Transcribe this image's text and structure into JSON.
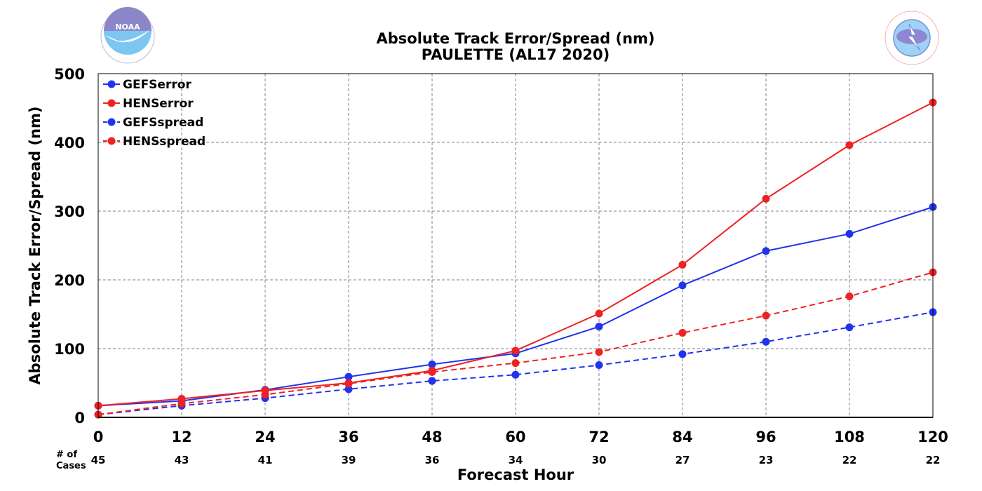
{
  "logos": {
    "left": {
      "icon": "noaa-logo",
      "text": "NOAA"
    },
    "right": {
      "icon": "nws-logo",
      "text": "NATIONAL WEATHER SERVICE"
    }
  },
  "chart_data": {
    "type": "line",
    "title": "Absolute Track Error/Spread (nm)",
    "subtitle": "PAULETTE (AL17 2020)",
    "xlabel": "Forecast Hour",
    "ylabel": "Absolute Track Error/Spread (nm)",
    "x": [
      0,
      12,
      24,
      36,
      48,
      60,
      72,
      84,
      96,
      108,
      120
    ],
    "xlim": [
      0,
      120
    ],
    "ylim": [
      0,
      500
    ],
    "yticks": [
      0,
      100,
      200,
      300,
      400,
      500
    ],
    "grid": true,
    "legend_position": "top-left",
    "cases_label_line1": "# of",
    "cases_label_line2": "Cases",
    "cases": [
      45,
      43,
      41,
      39,
      36,
      34,
      30,
      27,
      23,
      22,
      22
    ],
    "series": [
      {
        "name": "GEFSerror",
        "color": "#2233ee",
        "dash": "solid",
        "values": [
          17,
          24,
          40,
          59,
          77,
          93,
          132,
          192,
          242,
          267,
          306
        ]
      },
      {
        "name": "HENSerror",
        "color": "#ee2222",
        "dash": "solid",
        "values": [
          17,
          27,
          39,
          50,
          68,
          97,
          151,
          222,
          318,
          396,
          458
        ]
      },
      {
        "name": "GEFSspread",
        "color": "#2233ee",
        "dash": "dashed",
        "values": [
          4,
          17,
          28,
          41,
          53,
          62,
          76,
          92,
          110,
          131,
          153
        ]
      },
      {
        "name": "HENSspread",
        "color": "#ee2222",
        "dash": "dashed",
        "values": [
          4,
          20,
          33,
          49,
          66,
          79,
          95,
          123,
          148,
          176,
          211
        ]
      }
    ]
  }
}
